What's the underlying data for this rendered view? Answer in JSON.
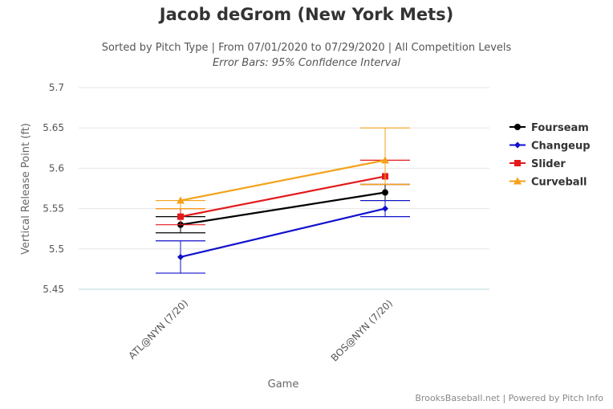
{
  "chart_data": {
    "type": "line",
    "title": "Jacob deGrom (New York Mets)",
    "subtitle": "Sorted by Pitch Type | From 07/01/2020 to 07/29/2020 | All Competition Levels",
    "subtitle2": "Error Bars: 95% Confidence Interval",
    "xlabel": "Game",
    "ylabel": "Vertical Release Point (ft)",
    "categories": [
      "ATL@NYN (7/20)",
      "BOS@NYN (7/20)"
    ],
    "ylim": [
      5.45,
      5.7
    ],
    "yticks": [
      "5.45",
      "5.5",
      "5.55",
      "5.6",
      "5.65",
      "5.7"
    ],
    "grid": true,
    "legend_position": "right",
    "series": [
      {
        "name": "Fourseam",
        "color": "#000000",
        "marker": "circle",
        "values": [
          5.53,
          5.57
        ],
        "err_low": [
          5.52,
          5.56
        ],
        "err_high": [
          5.54,
          5.58
        ]
      },
      {
        "name": "Changeup",
        "color": "#1010cc",
        "marker": "diamond",
        "values": [
          5.49,
          5.55
        ],
        "err_low": [
          5.47,
          5.54
        ],
        "err_high": [
          5.51,
          5.56
        ]
      },
      {
        "name": "Slider",
        "color": "#e31a1c",
        "marker": "square",
        "values": [
          5.54,
          5.59
        ],
        "err_low": [
          5.53,
          5.58
        ],
        "err_high": [
          5.55,
          5.61
        ]
      },
      {
        "name": "Curveball",
        "color": "#f5a21b",
        "marker": "triangle",
        "values": [
          5.56,
          5.61
        ],
        "err_low": [
          5.55,
          5.58
        ],
        "err_high": [
          5.56,
          5.65
        ]
      }
    ]
  },
  "credits": "BrooksBaseball.net | Powered by Pitch Info"
}
